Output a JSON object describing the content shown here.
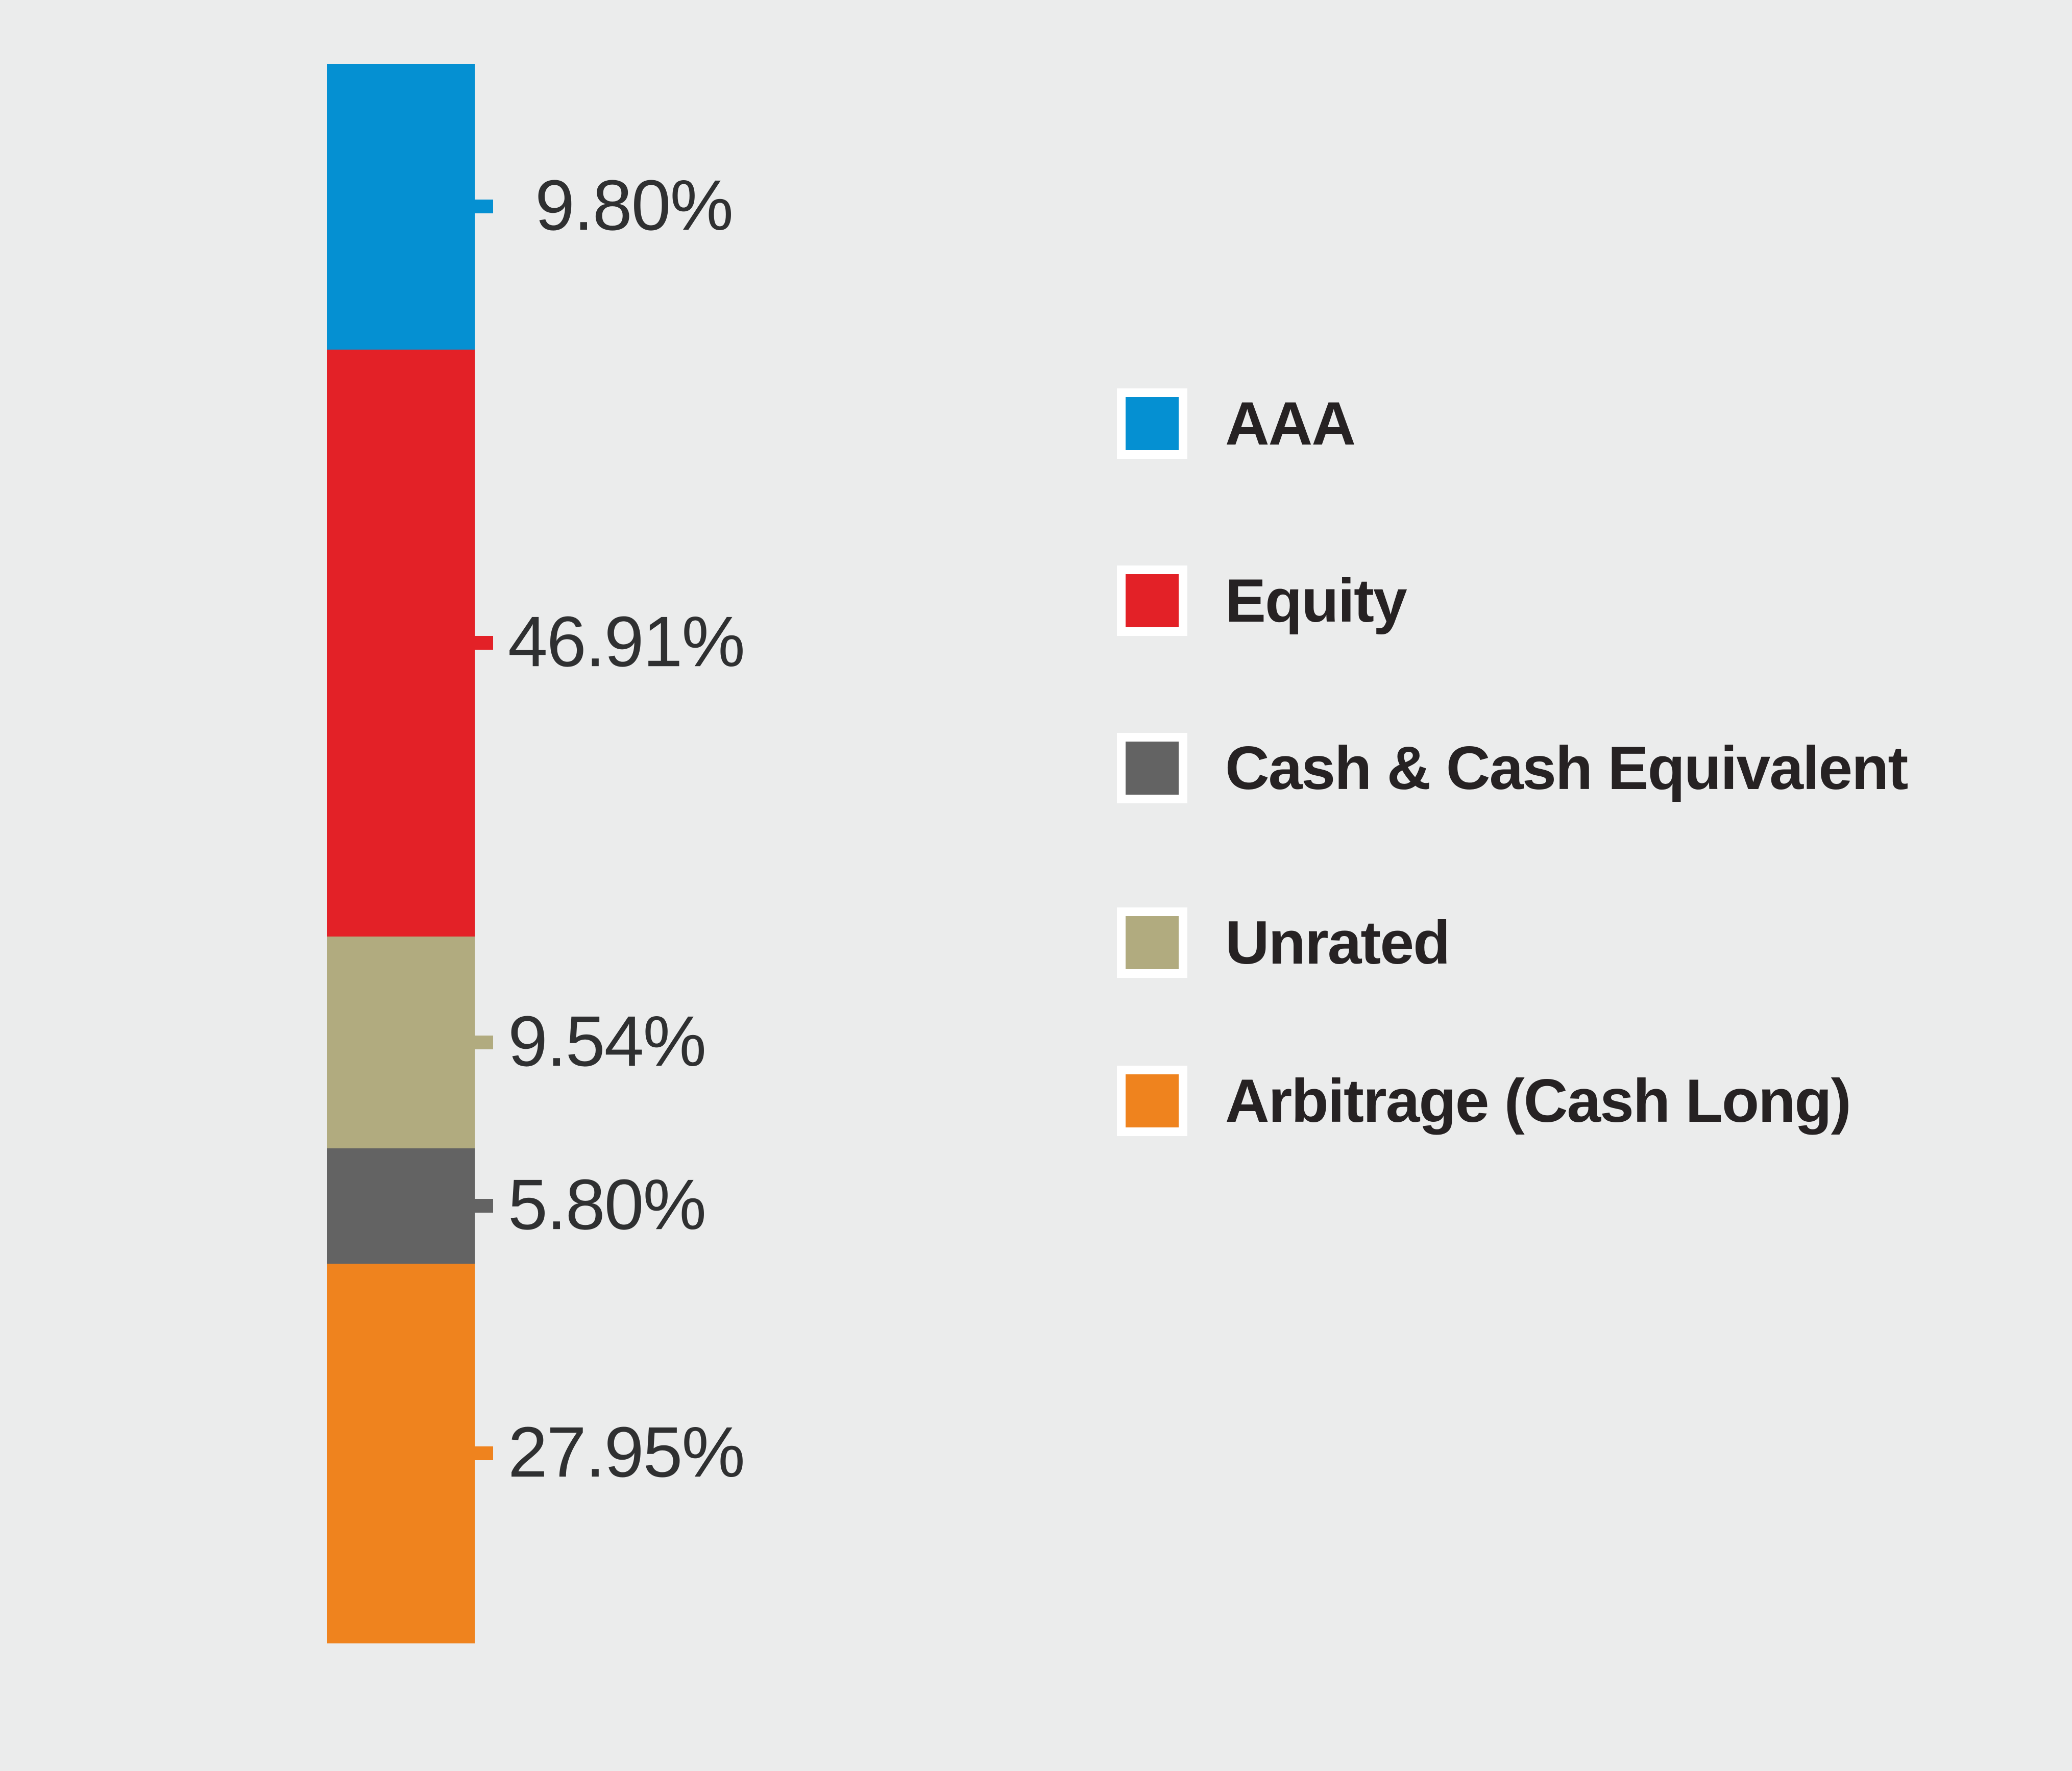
{
  "background_color": "#ebecec",
  "text_color_values": "#2f3031",
  "text_color_legend": "#262223",
  "chart_data": {
    "type": "bar",
    "subtype": "single-stacked-vertical-bar",
    "title": "",
    "xlabel": "",
    "ylabel": "",
    "grid": false,
    "legend_position": "right",
    "segments": [
      {
        "label": "AAA",
        "value": 9.8,
        "display_label": "9.80%",
        "color": "#0590d2",
        "display_height_frac": 0.1809
      },
      {
        "label": "Equity",
        "value": 46.91,
        "display_label": "46.91%",
        "color": "#e32127",
        "display_height_frac": 0.3716
      },
      {
        "label": "Unrated",
        "value": 9.54,
        "display_label": "9.54%",
        "color": "#b1ab7f",
        "display_height_frac": 0.1341
      },
      {
        "label": "Cash & Cash Equivalent",
        "value": 5.8,
        "display_label": "5.80%",
        "color": "#636363",
        "display_height_frac": 0.073
      },
      {
        "label": "Arbitrage (Cash Long)",
        "value": 27.95,
        "display_label": "27.95%",
        "color": "#ef831e",
        "display_height_frac": 0.2404
      }
    ],
    "legend": [
      {
        "label": "AAA",
        "color": "#0590d2"
      },
      {
        "label": "Equity",
        "color": "#e32127"
      },
      {
        "label": "Cash & Cash Equivalent",
        "color": "#636363"
      },
      {
        "label": "Unrated",
        "color": "#b1ab7f"
      },
      {
        "label": "Arbitrage (Cash Long)",
        "color": "#ef831e"
      }
    ]
  }
}
